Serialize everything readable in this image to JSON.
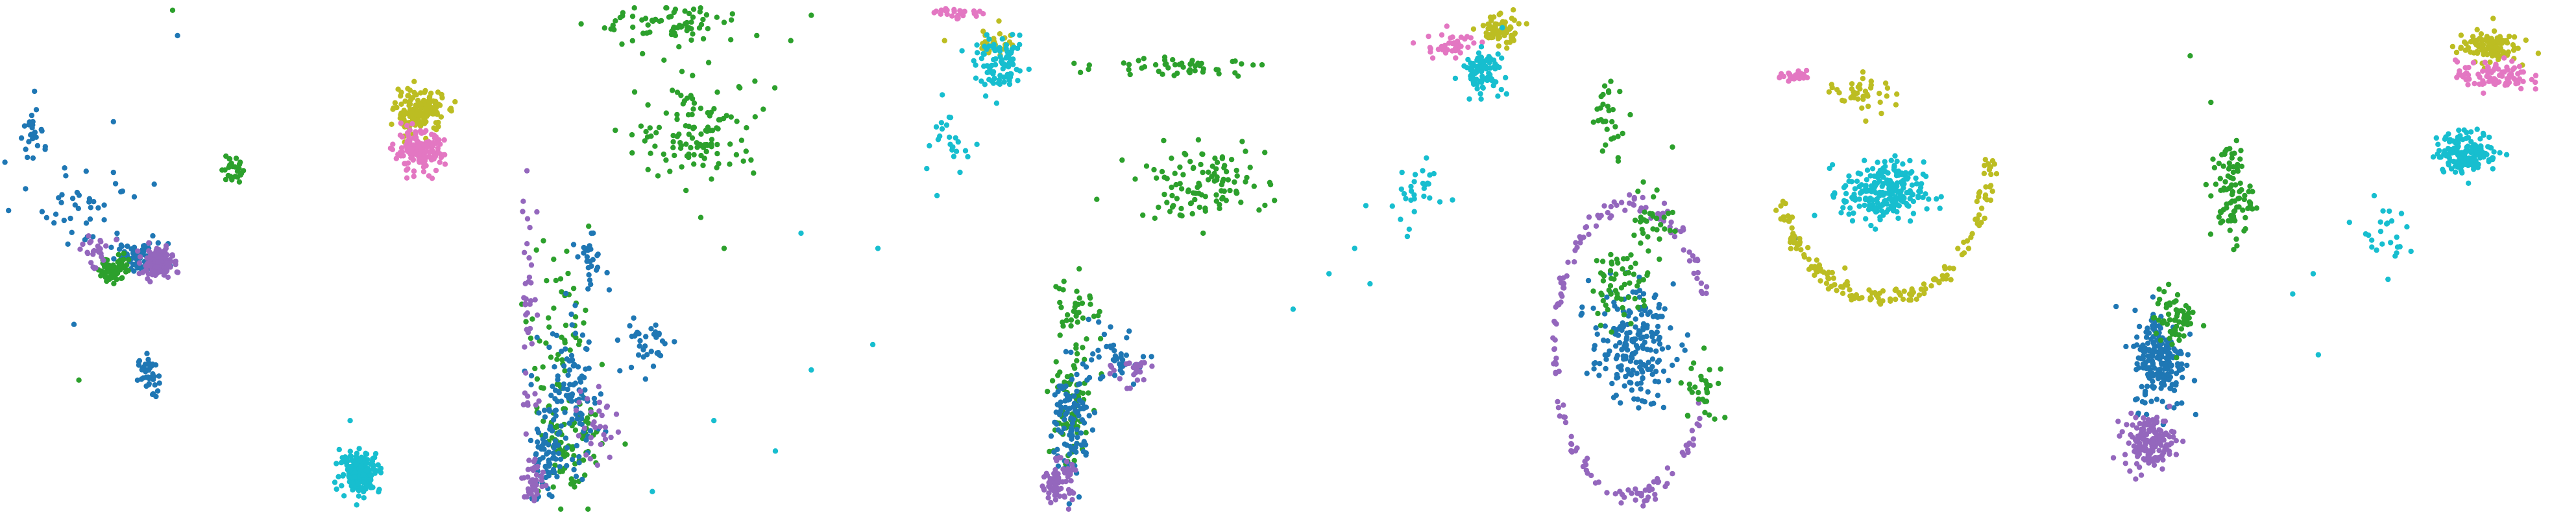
{
  "figure": {
    "palette": {
      "blue": "#1f77b4",
      "green": "#2ca02c",
      "purple": "#9467bd",
      "olive": "#bcbd22",
      "pink": "#e377c2",
      "cyan": "#17becf"
    },
    "legend": "none"
  },
  "chart_data": [
    {
      "type": "scatter",
      "axes": "hidden",
      "grid": false,
      "xlim": [
        0,
        1
      ],
      "ylim": [
        0,
        1
      ],
      "series": [
        {
          "color": "#1f77b4",
          "clusters": [
            [
              0.28,
              0.5,
              0.06,
              0.03,
              60
            ],
            [
              0.3,
              0.27,
              0.02,
              0.04,
              40
            ],
            [
              0.18,
              0.6,
              0.1,
              0.08,
              40
            ],
            [
              0.07,
              0.75,
              0.03,
              0.05,
              25
            ]
          ],
          "points": [
            [
              0.07,
              0.83
            ],
            [
              0.23,
              0.77
            ],
            [
              0.36,
              0.94
            ],
            [
              0.23,
              0.67
            ],
            [
              0.01,
              0.69
            ],
            [
              0.15,
              0.37
            ]
          ]
        },
        {
          "color": "#2ca02c",
          "clusters": [
            [
              0.23,
              0.48,
              0.03,
              0.03,
              60
            ],
            [
              0.47,
              0.68,
              0.02,
              0.03,
              25
            ]
          ],
          "points": [
            [
              0.35,
              0.99
            ],
            [
              0.16,
              0.26
            ]
          ]
        },
        {
          "color": "#9467bd",
          "clusters": [
            [
              0.32,
              0.49,
              0.03,
              0.03,
              140
            ],
            [
              0.19,
              0.52,
              0.04,
              0.03,
              25
            ]
          ],
          "points": []
        },
        {
          "color": "#bcbd22",
          "clusters": [
            [
              0.85,
              0.79,
              0.05,
              0.04,
              160
            ]
          ],
          "points": []
        },
        {
          "color": "#e377c2",
          "clusters": [
            [
              0.85,
              0.71,
              0.05,
              0.04,
              160
            ]
          ],
          "points": []
        },
        {
          "color": "#17becf",
          "clusters": [
            [
              0.73,
              0.08,
              0.04,
              0.04,
              170
            ]
          ],
          "points": [
            [
              0.71,
              0.18
            ]
          ]
        }
      ]
    },
    {
      "type": "scatter",
      "axes": "hidden",
      "grid": false,
      "xlim": [
        0,
        1
      ],
      "ylim": [
        0,
        1
      ],
      "series": [
        {
          "color": "#2ca02c",
          "clusters": [
            [
              0.35,
              0.75,
              0.12,
              0.1,
              120
            ],
            [
              0.3,
              0.96,
              0.15,
              0.04,
              70
            ],
            [
              0.08,
              0.3,
              0.06,
              0.25,
              80
            ],
            [
              0.1,
              0.12,
              0.06,
              0.08,
              70
            ]
          ],
          "points": [
            [
              0.53,
              0.93
            ],
            [
              0.46,
              0.85
            ],
            [
              0.57,
              0.98
            ],
            [
              0.4,
              0.52
            ]
          ]
        },
        {
          "color": "#1f77b4",
          "clusters": [
            [
              0.1,
              0.22,
              0.06,
              0.15,
              110
            ],
            [
              0.25,
              0.33,
              0.05,
              0.06,
              35
            ],
            [
              0.05,
              0.1,
              0.03,
              0.08,
              60
            ],
            [
              0.14,
              0.49,
              0.03,
              0.05,
              25
            ]
          ],
          "points": []
        },
        {
          "color": "#9467bd",
          "clusters": [
            [
              0.02,
              0.4,
              0.02,
              0.25,
              40
            ],
            [
              0.15,
              0.18,
              0.04,
              0.08,
              30
            ],
            [
              0.03,
              0.06,
              0.02,
              0.05,
              40
            ]
          ],
          "points": []
        },
        {
          "color": "#bcbd22",
          "clusters": [
            [
              0.93,
              0.93,
              0.03,
              0.03,
              30
            ]
          ],
          "points": [
            [
              0.83,
              0.93
            ]
          ]
        },
        {
          "color": "#e377c2",
          "clusters": [
            [
              0.85,
              0.985,
              0.06,
              0.012,
              30
            ]
          ],
          "points": []
        },
        {
          "color": "#17becf",
          "clusters": [
            [
              0.94,
              0.88,
              0.05,
              0.05,
              90
            ],
            [
              0.84,
              0.72,
              0.06,
              0.08,
              25
            ]
          ],
          "points": [
            [
              0.55,
              0.55
            ],
            [
              0.7,
              0.52
            ],
            [
              0.69,
              0.33
            ],
            [
              0.38,
              0.18
            ],
            [
              0.5,
              0.12
            ],
            [
              0.26,
              0.04
            ],
            [
              0.57,
              0.28
            ]
          ]
        }
      ]
    },
    {
      "type": "scatter",
      "axes": "hidden",
      "grid": false,
      "xlim": [
        0,
        1
      ],
      "ylim": [
        0,
        1
      ],
      "series": [
        {
          "color": "#2ca02c",
          "clusters": [
            [
              0.33,
              0.65,
              0.13,
              0.07,
              110
            ],
            [
              0.3,
              0.88,
              0.16,
              0.02,
              50
            ],
            [
              0.08,
              0.4,
              0.04,
              0.1,
              40
            ],
            [
              0.07,
              0.2,
              0.04,
              0.12,
              70
            ]
          ],
          "points": []
        },
        {
          "color": "#1f77b4",
          "clusters": [
            [
              0.08,
              0.18,
              0.04,
              0.12,
              100
            ],
            [
              0.17,
              0.3,
              0.05,
              0.05,
              40
            ]
          ],
          "points": []
        },
        {
          "color": "#9467bd",
          "clusters": [
            [
              0.05,
              0.06,
              0.03,
              0.04,
              80
            ],
            [
              0.2,
              0.28,
              0.04,
              0.03,
              25
            ]
          ],
          "points": []
        },
        {
          "color": "#bcbd22",
          "clusters": [
            [
              0.91,
              0.95,
              0.04,
              0.03,
              70
            ]
          ],
          "points": []
        },
        {
          "color": "#e377c2",
          "clusters": [
            [
              0.82,
              0.92,
              0.05,
              0.03,
              40
            ]
          ],
          "points": []
        },
        {
          "color": "#17becf",
          "clusters": [
            [
              0.88,
              0.87,
              0.04,
              0.04,
              90
            ],
            [
              0.75,
              0.62,
              0.07,
              0.08,
              30
            ]
          ],
          "points": [
            [
              0.66,
              0.45
            ],
            [
              0.51,
              0.4
            ],
            [
              0.63,
              0.52
            ],
            [
              0.58,
              0.47
            ]
          ]
        }
      ]
    },
    {
      "type": "scatter",
      "axes": "hidden",
      "grid": false,
      "xlim": [
        0,
        1
      ],
      "ylim": [
        0,
        1
      ],
      "series": [
        {
          "color": "#1f77b4",
          "clusters": [
            [
              0.17,
              0.33,
              0.08,
              0.11,
              200
            ]
          ],
          "points": [
            [
              0.49,
              0.54
            ]
          ]
        },
        {
          "color": "#9467bd",
          "ellipse": [
            0.17,
            0.32,
            0.15,
            0.29
          ],
          "arc": [
            0.05,
            0.95
          ],
          "count": 170,
          "clusters": [],
          "points": []
        },
        {
          "color": "#2ca02c",
          "clusters": [
            [
              0.15,
              0.45,
              0.06,
              0.07,
              60
            ],
            [
              0.13,
              0.78,
              0.04,
              0.07,
              30
            ],
            [
              0.31,
              0.25,
              0.04,
              0.08,
              30
            ],
            [
              0.21,
              0.58,
              0.04,
              0.06,
              30
            ]
          ],
          "points": [
            [
              0.25,
              0.72
            ]
          ]
        },
        {
          "color": "#bcbd22",
          "ellipse": [
            0.66,
            0.7,
            0.21,
            0.28
          ],
          "arc": [
            0.55,
            1.0
          ],
          "count": 170,
          "clusters": [
            [
              0.62,
              0.83,
              0.07,
              0.04,
              40
            ]
          ],
          "points": []
        },
        {
          "color": "#e377c2",
          "clusters": [
            [
              0.49,
              0.86,
              0.03,
              0.01,
              35
            ]
          ],
          "points": []
        },
        {
          "color": "#17becf",
          "clusters": [
            [
              0.66,
              0.63,
              0.08,
              0.06,
              230
            ]
          ],
          "points": []
        }
      ]
    },
    {
      "type": "scatter",
      "axes": "hidden",
      "grid": false,
      "xlim": [
        0,
        1
      ],
      "ylim": [
        0,
        1
      ],
      "series": [
        {
          "color": "#1f77b4",
          "clusters": [
            [
              0.2,
              0.3,
              0.05,
              0.1,
              200
            ]
          ],
          "points": []
        },
        {
          "color": "#9467bd",
          "clusters": [
            [
              0.18,
              0.14,
              0.05,
              0.05,
              150
            ]
          ],
          "points": []
        },
        {
          "color": "#2ca02c",
          "clusters": [
            [
              0.34,
              0.63,
              0.04,
              0.1,
              90
            ],
            [
              0.23,
              0.38,
              0.04,
              0.06,
              60
            ]
          ],
          "points": [
            [
              0.26,
              0.9
            ]
          ]
        },
        {
          "color": "#bcbd22",
          "clusters": [
            [
              0.84,
              0.92,
              0.06,
              0.03,
              110
            ]
          ],
          "points": []
        },
        {
          "color": "#e377c2",
          "clusters": [
            [
              0.85,
              0.86,
              0.07,
              0.03,
              90
            ]
          ],
          "points": []
        },
        {
          "color": "#17becf",
          "clusters": [
            [
              0.8,
              0.71,
              0.06,
              0.04,
              160
            ],
            [
              0.63,
              0.55,
              0.05,
              0.06,
              25
            ]
          ],
          "points": [
            [
              0.5,
              0.47
            ],
            [
              0.46,
              0.43
            ],
            [
              0.51,
              0.31
            ]
          ]
        }
      ]
    }
  ]
}
